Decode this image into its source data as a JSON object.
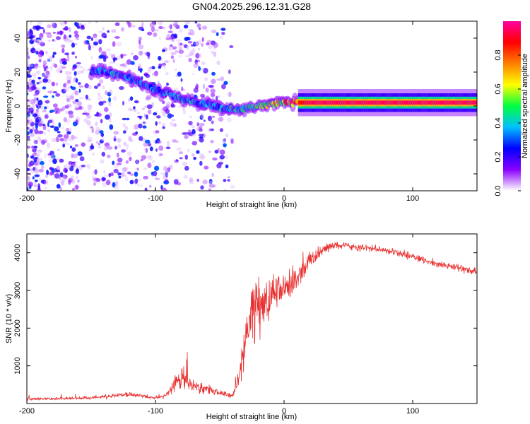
{
  "figure_title": "GN04.2025.296.12.31.G28",
  "chart_data": [
    {
      "type": "heatmap",
      "title": "GN04.2025.296.12.31.G28",
      "xlabel": "Height of straight line (km)",
      "ylabel": "Frequency (Hz)",
      "xlim": [
        -200,
        150
      ],
      "ylim": [
        -50,
        50
      ],
      "x_ticks": [
        -200,
        -100,
        0,
        100
      ],
      "y_ticks": [
        -40,
        -20,
        0,
        20,
        40
      ],
      "colorbar": {
        "label": "Normalized spectral amplitude",
        "range": [
          0.0,
          1.0
        ],
        "ticks": [
          0.0,
          0.2,
          0.4,
          0.6,
          0.8
        ],
        "tick_labels": [
          "0.0",
          "0.2",
          "0.4",
          "0.6",
          "0.8"
        ],
        "colormap": [
          "#ffffff",
          "#8a00ff",
          "#0000ff",
          "#00c0ff",
          "#00ff40",
          "#ffff00",
          "#ff8000",
          "#ff0000",
          "#ff00a0"
        ]
      },
      "ridge": {
        "x": [
          -150,
          -140,
          -130,
          -120,
          -110,
          -100,
          -90,
          -80,
          -70,
          -60,
          -50,
          -40,
          -35,
          -30,
          -20,
          -10,
          0,
          10,
          20,
          40,
          60,
          80,
          100,
          120,
          150
        ],
        "freq": [
          21,
          20,
          19,
          16,
          13,
          10,
          7,
          4,
          2,
          1,
          -1,
          -2,
          -2,
          -1,
          0,
          1,
          2,
          2,
          2,
          2,
          2,
          2,
          2,
          2,
          2
        ],
        "amp": [
          0.3,
          0.3,
          0.35,
          0.3,
          0.3,
          0.3,
          0.35,
          0.35,
          0.35,
          0.3,
          0.35,
          0.4,
          0.4,
          0.4,
          0.5,
          0.6,
          0.65,
          0.85,
          0.95,
          0.95,
          0.95,
          0.95,
          0.95,
          0.95,
          0.95
        ]
      },
      "noise_region_x": [
        -200,
        -40
      ]
    },
    {
      "type": "line",
      "xlabel": "Height of straight line (km)",
      "ylabel": "SNR (10 * v/v)",
      "xlim": [
        -200,
        150
      ],
      "ylim": [
        0,
        4500
      ],
      "x_ticks": [
        -200,
        -100,
        0,
        100
      ],
      "y_ticks": [
        1000,
        2000,
        3000,
        4000
      ],
      "series": [
        {
          "name": "SNR",
          "color": "#e83030",
          "envelope_x": [
            -200,
            -150,
            -120,
            -100,
            -90,
            -85,
            -80,
            -75,
            -70,
            -60,
            -50,
            -40,
            -35,
            -30,
            -25,
            -20,
            -15,
            -10,
            -5,
            0,
            10,
            20,
            30,
            40,
            60,
            80,
            100,
            120,
            150
          ],
          "envelope_mean": [
            120,
            150,
            250,
            150,
            250,
            600,
            700,
            600,
            500,
            380,
            280,
            200,
            600,
            1800,
            2400,
            2500,
            2600,
            2800,
            3000,
            3100,
            3300,
            3800,
            4100,
            4200,
            4150,
            4050,
            3900,
            3700,
            3500
          ],
          "envelope_spread": [
            60,
            70,
            100,
            80,
            120,
            400,
            500,
            400,
            300,
            250,
            150,
            100,
            500,
            1200,
            1400,
            1300,
            1100,
            1000,
            900,
            700,
            500,
            350,
            200,
            150,
            150,
            150,
            150,
            150,
            150
          ]
        }
      ]
    }
  ]
}
